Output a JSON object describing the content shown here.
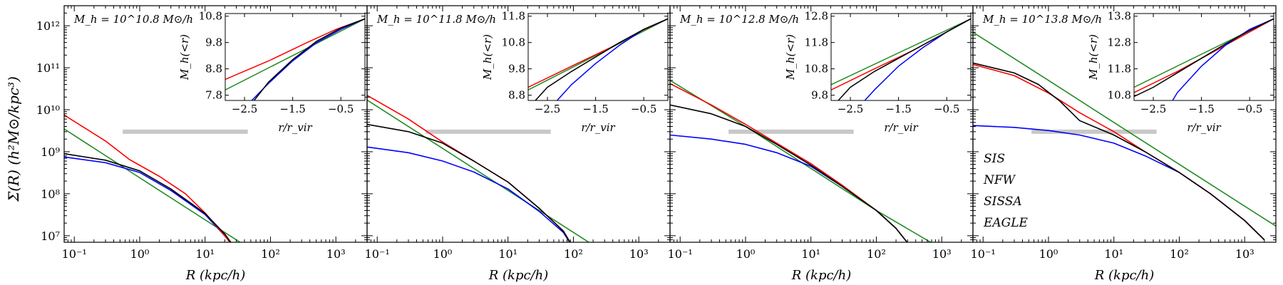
{
  "figure": {
    "ylabel": "Σ(R) (h²M⊙/kpc³)",
    "xlabel": "R (kpc/h)",
    "inset_xlabel": "r/r_vir",
    "inset_ylabel": "M_h(<r)"
  },
  "colors": {
    "SIS": "#228b22",
    "NFW": "#0000ff",
    "SISSA": "#ff0000",
    "EAGLE": "#000000",
    "band": "#c8c8c8"
  },
  "chart_data": [
    {
      "type": "line",
      "title": "M_h = 10^10.8 M⊙/h",
      "xscale": "log",
      "yscale": "log",
      "xlim": [
        0.07,
        3000
      ],
      "ylim": [
        7000000.0,
        3000000000000.0
      ],
      "xticks": [
        "10⁻¹",
        "10⁰",
        "10¹",
        "10²",
        "10³"
      ],
      "yticks": [
        "10⁷",
        "10⁸",
        "10⁹",
        "10¹⁰",
        "10¹¹",
        "10¹²"
      ],
      "band": {
        "x": [
          0.55,
          45
        ],
        "y": 3000000000.0
      },
      "series": [
        {
          "name": "SIS",
          "x": [
            0.07,
            1,
            10,
            100
          ],
          "y": [
            3500000000.0,
            240000000.0,
            24000000.0,
            2400000.0
          ]
        },
        {
          "name": "NFW",
          "x": [
            0.07,
            0.3,
            1,
            3,
            10,
            20,
            40
          ],
          "y": [
            750000000.0,
            550000000.0,
            320000000.0,
            120000000.0,
            32000000.0,
            10000000.0,
            2500000.0
          ]
        },
        {
          "name": "SISSA",
          "x": [
            0.07,
            0.3,
            0.7,
            2,
            5,
            10,
            20,
            40
          ],
          "y": [
            7500000000.0,
            1800000000.0,
            650000000.0,
            260000000.0,
            100000000.0,
            35000000.0,
            10000000.0,
            2500000.0
          ]
        },
        {
          "name": "EAGLE",
          "x": [
            0.07,
            0.3,
            1,
            3,
            10,
            20,
            40
          ],
          "y": [
            900000000.0,
            630000000.0,
            350000000.0,
            130000000.0,
            34000000.0,
            11000000.0,
            2500000.0
          ]
        }
      ],
      "inset": {
        "xlim": [
          -2.9,
          0.0
        ],
        "ylim": [
          7.6,
          10.9
        ],
        "xticks": [
          -2.5,
          -1.5,
          -0.5
        ],
        "yticks": [
          7.8,
          8.8,
          9.8,
          10.8
        ],
        "series": [
          {
            "name": "SIS",
            "x": [
              -2.9,
              0.0
            ],
            "y": [
              8.0,
              10.7
            ]
          },
          {
            "name": "SISSA",
            "x": [
              -2.9,
              -2.0,
              -1.2,
              -0.6,
              0.0
            ],
            "y": [
              8.4,
              9.1,
              9.8,
              10.3,
              10.7
            ]
          },
          {
            "name": "NFW",
            "x": [
              -2.35,
              -2.0,
              -1.5,
              -1.0,
              -0.5,
              0.0
            ],
            "y": [
              7.6,
              8.25,
              9.1,
              9.8,
              10.3,
              10.7
            ]
          },
          {
            "name": "EAGLE",
            "x": [
              -2.3,
              -2.0,
              -1.5,
              -1.0,
              -0.5,
              0.0
            ],
            "y": [
              7.6,
              8.3,
              9.15,
              9.85,
              10.35,
              10.7
            ]
          }
        ]
      }
    },
    {
      "type": "line",
      "title": "M_h = 10^11.8 M⊙/h",
      "xscale": "log",
      "yscale": "log",
      "xlim": [
        0.07,
        3000
      ],
      "ylim": [
        7000000.0,
        3000000000000.0
      ],
      "xticks": [
        "10⁻¹",
        "10⁰",
        "10¹",
        "10²",
        "10³"
      ],
      "yticks": [],
      "band": {
        "x": [
          0.55,
          45
        ],
        "y": 3000000000.0
      },
      "series": [
        {
          "name": "SIS",
          "x": [
            0.07,
            1,
            10,
            100,
            200
          ],
          "y": [
            17000000000.0,
            1200000000.0,
            120000000.0,
            12000000.0,
            6000000.0
          ]
        },
        {
          "name": "NFW",
          "x": [
            0.07,
            0.3,
            1,
            3,
            10,
            30,
            70,
            110
          ],
          "y": [
            1300000000.0,
            950000000.0,
            600000000.0,
            330000000.0,
            130000000.0,
            38000000.0,
            12000000.0,
            4000000.0
          ]
        },
        {
          "name": "SISSA",
          "x": [
            0.07,
            0.3,
            1,
            3,
            10,
            30,
            70,
            110
          ],
          "y": [
            22000000000.0,
            6000000000.0,
            1700000000.0,
            600000000.0,
            190000000.0,
            45000000.0,
            13000000.0,
            4000000.0
          ]
        },
        {
          "name": "EAGLE",
          "x": [
            0.07,
            0.3,
            1,
            3,
            10,
            30,
            70,
            110
          ],
          "y": [
            4500000000.0,
            3000000000.0,
            1600000000.0,
            600000000.0,
            190000000.0,
            45000000.0,
            13000000.0,
            4000000.0
          ]
        }
      ],
      "inset": {
        "xlim": [
          -2.9,
          0.0
        ],
        "ylim": [
          8.6,
          11.9
        ],
        "xticks": [
          -2.5,
          -1.5,
          -0.5
        ],
        "yticks": [
          8.8,
          9.8,
          10.8,
          11.8
        ],
        "series": [
          {
            "name": "SIS",
            "x": [
              -2.9,
              0.0
            ],
            "y": [
              9.0,
              11.7
            ]
          },
          {
            "name": "SISSA",
            "x": [
              -2.9,
              -2.0,
              -1.2,
              -0.6,
              0.0
            ],
            "y": [
              9.1,
              9.9,
              10.6,
              11.2,
              11.7
            ]
          },
          {
            "name": "NFW",
            "x": [
              -2.3,
              -2.0,
              -1.5,
              -1.0,
              -0.5,
              0.0
            ],
            "y": [
              8.6,
              9.2,
              10.0,
              10.7,
              11.3,
              11.7
            ]
          },
          {
            "name": "EAGLE",
            "x": [
              -2.75,
              -2.5,
              -2.0,
              -1.5,
              -1.0,
              -0.5,
              0.0
            ],
            "y": [
              8.6,
              9.1,
              9.7,
              10.25,
              10.8,
              11.3,
              11.7
            ]
          }
        ]
      }
    },
    {
      "type": "line",
      "title": "M_h = 10^12.8 M⊙/h",
      "xscale": "log",
      "yscale": "log",
      "xlim": [
        0.07,
        3000
      ],
      "ylim": [
        7000000.0,
        3000000000000.0
      ],
      "xticks": [
        "10⁻¹",
        "10⁰",
        "10¹",
        "10²",
        "10³"
      ],
      "yticks": [],
      "band": {
        "x": [
          0.55,
          45
        ],
        "y": 3000000000.0
      },
      "series": [
        {
          "name": "SIS",
          "x": [
            0.07,
            1,
            10,
            100,
            800
          ],
          "y": [
            50000000000.0,
            4000000000.0,
            400000000.0,
            40000000.0,
            6000000.0
          ]
        },
        {
          "name": "NFW",
          "x": [
            0.07,
            0.3,
            1,
            3,
            10,
            30,
            100,
            200,
            350
          ],
          "y": [
            2500000000.0,
            2000000000.0,
            1500000000.0,
            950000000.0,
            450000000.0,
            150000000.0,
            40000000.0,
            15000000.0,
            5000000.0
          ]
        },
        {
          "name": "SISSA",
          "x": [
            0.07,
            0.3,
            1,
            3,
            10,
            30,
            100,
            200,
            350
          ],
          "y": [
            42000000000.0,
            13000000000.0,
            4500000000.0,
            1600000000.0,
            520000000.0,
            160000000.0,
            40000000.0,
            15000000.0,
            5000000.0
          ]
        },
        {
          "name": "EAGLE",
          "x": [
            0.07,
            0.3,
            1,
            3,
            10,
            30,
            100,
            200,
            350
          ],
          "y": [
            13000000000.0,
            8000000000.0,
            4000000000.0,
            1500000000.0,
            480000000.0,
            150000000.0,
            40000000.0,
            15000000.0,
            5000000.0
          ]
        }
      ],
      "inset": {
        "xlim": [
          -2.9,
          0.0
        ],
        "ylim": [
          9.6,
          12.9
        ],
        "xticks": [
          -2.5,
          -1.5,
          -0.5
        ],
        "yticks": [
          9.8,
          10.8,
          11.8,
          12.8
        ],
        "series": [
          {
            "name": "SIS",
            "x": [
              -2.9,
              0.0
            ],
            "y": [
              10.2,
              12.7
            ]
          },
          {
            "name": "SISSA",
            "x": [
              -2.9,
              -2.0,
              -1.2,
              -0.6,
              0.0
            ],
            "y": [
              10.0,
              10.8,
              11.5,
              12.1,
              12.7
            ]
          },
          {
            "name": "NFW",
            "x": [
              -2.2,
              -2.0,
              -1.5,
              -1.0,
              -0.5,
              0.0
            ],
            "y": [
              9.6,
              10.0,
              10.9,
              11.6,
              12.2,
              12.7
            ]
          },
          {
            "name": "EAGLE",
            "x": [
              -2.75,
              -2.5,
              -2.0,
              -1.5,
              -1.0,
              -0.5,
              0.0
            ],
            "y": [
              9.6,
              10.1,
              10.7,
              11.2,
              11.7,
              12.2,
              12.7
            ]
          }
        ]
      }
    },
    {
      "type": "line",
      "title": "M_h = 10^13.8 M⊙/h",
      "xscale": "log",
      "yscale": "log",
      "xlim": [
        0.07,
        3000
      ],
      "ylim": [
        7000000.0,
        3000000000000.0
      ],
      "xticks": [
        "10⁻¹",
        "10⁰",
        "10¹",
        "10²",
        "10³"
      ],
      "yticks": [],
      "band": {
        "x": [
          0.55,
          45
        ],
        "y": 3000000000.0
      },
      "series": [
        {
          "name": "SIS",
          "x": [
            0.07,
            1,
            10,
            100,
            3000
          ],
          "y": [
            700000000000.0,
            50000000000.0,
            5000000000.0,
            500000000.0,
            17000000.0
          ]
        },
        {
          "name": "NFW",
          "x": [
            0.07,
            0.3,
            1,
            3,
            10,
            30,
            100,
            300,
            1000,
            2000
          ],
          "y": [
            4200000000.0,
            3800000000.0,
            3200000000.0,
            2500000000.0,
            1600000000.0,
            800000000.0,
            320000000.0,
            100000000.0,
            23000000.0,
            8000000.0
          ]
        },
        {
          "name": "SISSA",
          "x": [
            0.07,
            0.3,
            1,
            3,
            10,
            30,
            100,
            300,
            1000,
            2000
          ],
          "y": [
            120000000000.0,
            65000000000.0,
            25000000000.0,
            8500000000.0,
            3000000000.0,
            1000000000.0,
            320000000.0,
            100000000.0,
            23000000.0,
            8000000.0
          ]
        },
        {
          "name": "EAGLE",
          "x": [
            0.07,
            0.3,
            0.7,
            1.5,
            3,
            10,
            30,
            100,
            300,
            1000,
            2000
          ],
          "y": [
            130000000000.0,
            75000000000.0,
            40000000000.0,
            16000000000.0,
            5500000000.0,
            2500000000.0,
            1000000000.0,
            320000000.0,
            100000000.0,
            23000000.0,
            8000000.0
          ]
        }
      ],
      "legend": {
        "placement": "lower-left",
        "entries": [
          "SIS",
          "NFW",
          "SISSA",
          "EAGLE"
        ]
      },
      "inset": {
        "xlim": [
          -2.9,
          0.0
        ],
        "ylim": [
          10.6,
          13.9
        ],
        "xticks": [
          -2.5,
          -1.5,
          -0.5
        ],
        "yticks": [
          10.8,
          11.8,
          12.8,
          13.8
        ],
        "series": [
          {
            "name": "SIS",
            "x": [
              -2.9,
              0.0
            ],
            "y": [
              11.1,
              13.7
            ]
          },
          {
            "name": "SISSA",
            "x": [
              -2.9,
              -2.0,
              -1.2,
              -0.6,
              0.0
            ],
            "y": [
              10.9,
              11.7,
              12.5,
              13.1,
              13.7
            ]
          },
          {
            "name": "NFW",
            "x": [
              -2.1,
              -2.0,
              -1.5,
              -1.0,
              -0.5,
              0.0
            ],
            "y": [
              10.6,
              10.9,
              11.9,
              12.7,
              13.3,
              13.7
            ]
          },
          {
            "name": "EAGLE",
            "x": [
              -2.9,
              -2.5,
              -2.0,
              -1.5,
              -1.0,
              -0.5,
              0.0
            ],
            "y": [
              10.75,
              11.1,
              11.65,
              12.2,
              12.75,
              13.25,
              13.7
            ]
          }
        ]
      }
    }
  ]
}
